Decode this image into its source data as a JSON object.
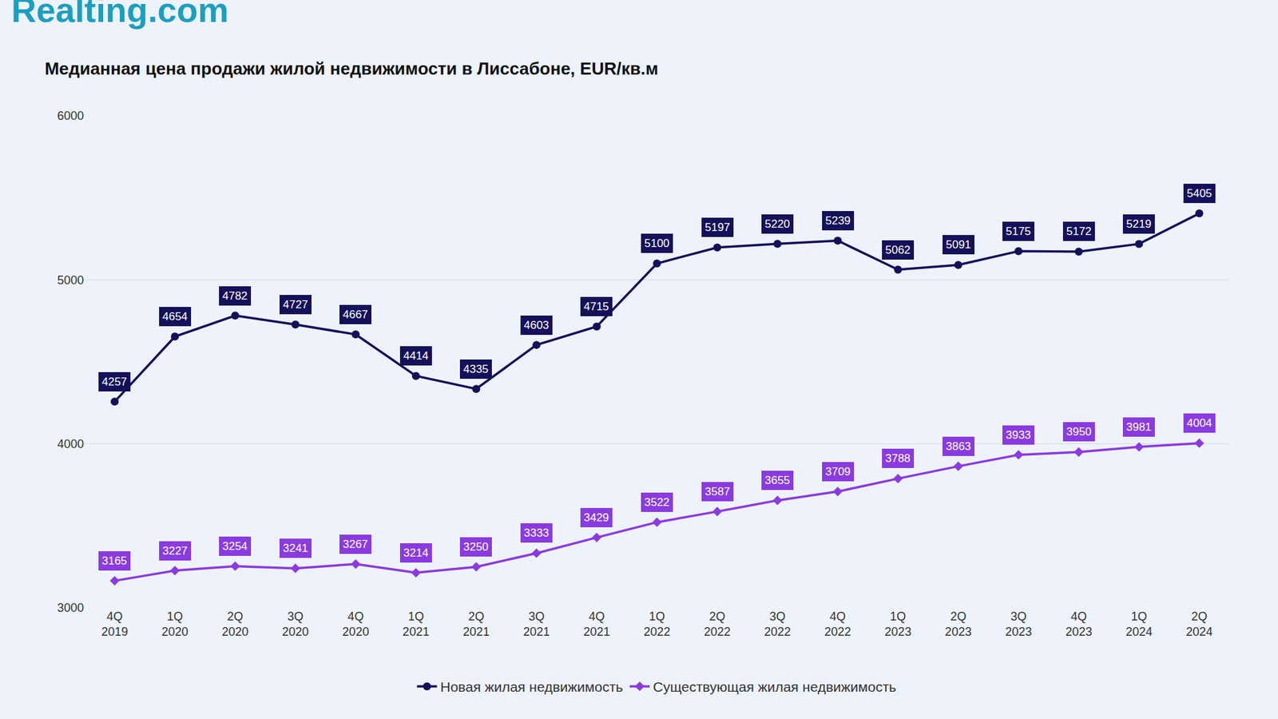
{
  "chart_data": {
    "type": "line",
    "brand": "Realting.com",
    "title": "Медианная цена продажи жилой недвижимости в Лиссабоне, EUR/кв.м",
    "categories": [
      "4Q 2019",
      "1Q 2020",
      "2Q 2020",
      "3Q 2020",
      "4Q 2020",
      "1Q 2021",
      "2Q 2021",
      "3Q 2021",
      "4Q 2021",
      "1Q 2022",
      "2Q 2022",
      "3Q 2022",
      "4Q 2022",
      "1Q 2023",
      "2Q 2023",
      "3Q 2023",
      "4Q 2023",
      "1Q 2024",
      "2Q 2024"
    ],
    "series": [
      {
        "name": "Новая жилая недвижимость",
        "color": "#15105a",
        "marker": "circle",
        "line_style": "solid",
        "values": [
          4257,
          4654,
          4782,
          4727,
          4667,
          4414,
          4335,
          4603,
          4715,
          5100,
          5197,
          5220,
          5239,
          5062,
          5091,
          5175,
          5172,
          5219,
          5405
        ]
      },
      {
        "name": "Существующая жилая недвижимость",
        "color": "#8a3be0",
        "marker": "diamond",
        "line_style": "solid",
        "values": [
          3165,
          3227,
          3254,
          3241,
          3267,
          3214,
          3250,
          3333,
          3429,
          3522,
          3587,
          3655,
          3709,
          3788,
          3863,
          3933,
          3950,
          3981,
          4004
        ]
      }
    ],
    "ylim": [
      3000,
      6000
    ],
    "yticks": [
      3000,
      4000,
      5000,
      6000
    ],
    "grid": true,
    "data_labels": true,
    "legend": "bottom"
  }
}
